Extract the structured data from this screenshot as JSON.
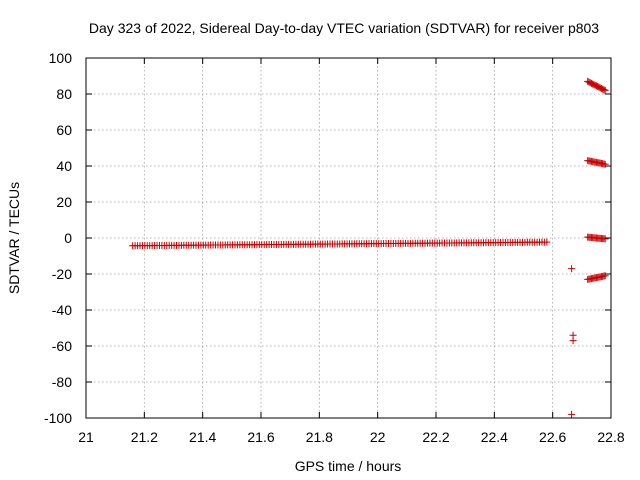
{
  "chart_data": {
    "type": "scatter",
    "title": "Day 323 of 2022, Sidereal Day-to-day VTEC variation (SDTVAR) for receiver p803",
    "xlabel": "GPS time / hours",
    "ylabel": "SDTVAR / TECUs",
    "xlim": [
      21,
      22.8
    ],
    "ylim": [
      -100,
      100
    ],
    "xticks": [
      "21",
      "21.2",
      "21.4",
      "21.6",
      "21.8",
      "22",
      "22.2",
      "22.4",
      "22.6",
      "22.8"
    ],
    "yticks": [
      "100",
      "80",
      "60",
      "40",
      "20",
      "0",
      "-20",
      "-40",
      "-60",
      "-80",
      "-100"
    ],
    "grid": true,
    "marker": "+",
    "color": "#cc0000",
    "series": [
      {
        "name": "main",
        "x_start": 21.16,
        "x_end": 22.58,
        "step": 0.00833,
        "y_start": -4.3,
        "y_end": -2.3
      },
      {
        "name": "track-87",
        "x_start": 22.72,
        "x_end": 22.78,
        "step": 0.00417,
        "y_start": 87,
        "y_end": 82
      },
      {
        "name": "track-43",
        "x_start": 22.72,
        "x_end": 22.78,
        "step": 0.00417,
        "y_start": 43,
        "y_end": 41
      },
      {
        "name": "track-0",
        "x_start": 22.72,
        "x_end": 22.78,
        "step": 0.00417,
        "y_start": 0.5,
        "y_end": -0.5
      },
      {
        "name": "track-minus22",
        "x_start": 22.72,
        "x_end": 22.78,
        "step": 0.00417,
        "y_start": -23,
        "y_end": -21
      },
      {
        "name": "isolated",
        "points": [
          [
            22.665,
            -17
          ],
          [
            22.67,
            -54
          ],
          [
            22.67,
            -57
          ],
          [
            22.665,
            -98
          ]
        ]
      }
    ]
  }
}
